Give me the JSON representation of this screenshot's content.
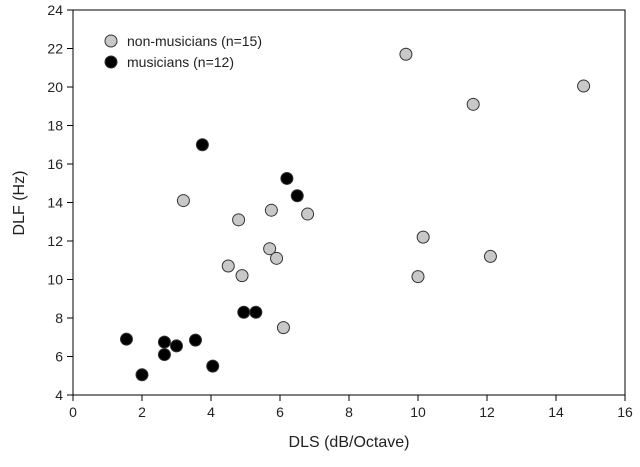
{
  "chart_data": {
    "type": "scatter",
    "xlabel": "DLS (dB/Octave)",
    "ylabel": "DLF (Hz)",
    "xlim": [
      0,
      16
    ],
    "ylim": [
      4,
      24
    ],
    "x_ticks": [
      0,
      2,
      4,
      6,
      8,
      10,
      12,
      14,
      16
    ],
    "y_ticks": [
      4,
      6,
      8,
      10,
      12,
      14,
      16,
      18,
      20,
      22,
      24
    ],
    "grid": false,
    "legend_position": "top-left",
    "series": [
      {
        "name": "non-musicians (n=15)",
        "color": "#c8c8c8",
        "points": [
          [
            3.2,
            14.1
          ],
          [
            4.5,
            10.7
          ],
          [
            4.8,
            13.1
          ],
          [
            4.9,
            10.2
          ],
          [
            5.7,
            11.6
          ],
          [
            5.75,
            13.6
          ],
          [
            5.9,
            11.1
          ],
          [
            6.1,
            7.5
          ],
          [
            6.8,
            13.4
          ],
          [
            9.65,
            21.7
          ],
          [
            10.0,
            10.15
          ],
          [
            10.15,
            12.2
          ],
          [
            11.6,
            19.1
          ],
          [
            12.1,
            11.2
          ],
          [
            14.8,
            20.05
          ]
        ]
      },
      {
        "name": "musicians (n=12)",
        "color": "#000000",
        "points": [
          [
            1.55,
            6.9
          ],
          [
            2.0,
            5.05
          ],
          [
            2.65,
            6.75
          ],
          [
            2.65,
            6.1
          ],
          [
            3.0,
            6.55
          ],
          [
            3.55,
            6.85
          ],
          [
            3.75,
            17.0
          ],
          [
            4.05,
            5.5
          ],
          [
            4.95,
            8.3
          ],
          [
            5.3,
            8.3
          ],
          [
            6.2,
            15.25
          ],
          [
            6.5,
            14.35
          ]
        ]
      }
    ]
  }
}
